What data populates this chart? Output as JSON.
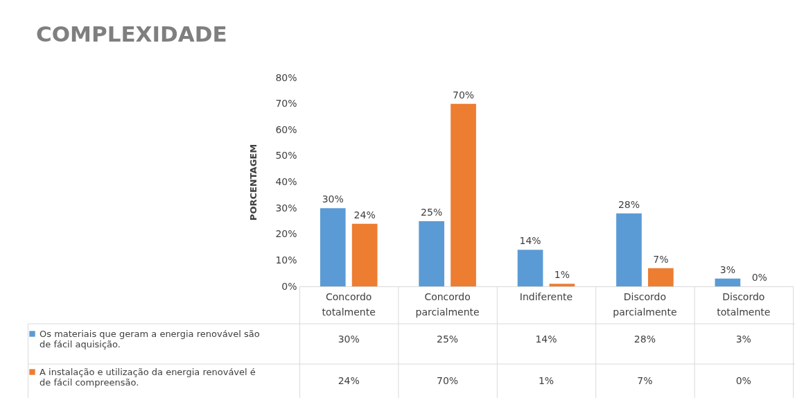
{
  "chart_data": {
    "type": "bar",
    "title": "COMPLEXIDADE",
    "ylabel": "PORCENTAGEM",
    "categories": [
      "Concordo totalmente",
      "Concordo parcialmente",
      "Indiferente",
      "Discordo parcialmente",
      "Discordo totalmente"
    ],
    "series": [
      {
        "name": "Os materiais que geram a energia renovável são de fácil aquisição.",
        "color": "#5b9bd5",
        "values": [
          30,
          25,
          14,
          28,
          3
        ],
        "value_labels": [
          "30%",
          "25%",
          "14%",
          "28%",
          "3%"
        ]
      },
      {
        "name": "A instalação e utilização da energia renovável é de fácil compreensão.",
        "color": "#ed7d31",
        "values": [
          24,
          70,
          1,
          7,
          0
        ],
        "value_labels": [
          "24%",
          "70%",
          "1%",
          "7%",
          "0%"
        ]
      }
    ],
    "ylim": [
      0,
      80
    ],
    "yticks": [
      {
        "value": 0,
        "label": "0%"
      },
      {
        "value": 10,
        "label": "10%"
      },
      {
        "value": 20,
        "label": "20%"
      },
      {
        "value": 30,
        "label": "30%"
      },
      {
        "value": 40,
        "label": "40%"
      },
      {
        "value": 50,
        "label": "50%"
      },
      {
        "value": 60,
        "label": "60%"
      },
      {
        "value": 70,
        "label": "70%"
      },
      {
        "value": 80,
        "label": "80%"
      }
    ],
    "grid": false,
    "legend": "bottom"
  }
}
